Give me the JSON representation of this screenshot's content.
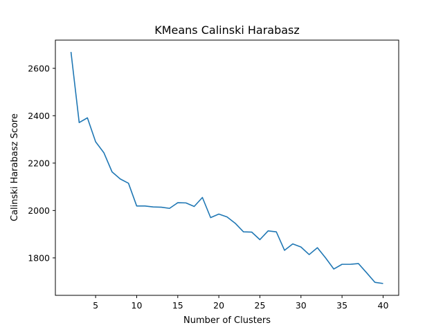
{
  "chart_data": {
    "type": "line",
    "title": "KMeans Calinski Harabasz",
    "xlabel": "Number of Clusters",
    "ylabel": "Calinski Harabasz Score",
    "xlim": [
      0.1,
      41.9
    ],
    "ylim": [
      1642,
      2719
    ],
    "xticks": [
      5,
      10,
      15,
      20,
      25,
      30,
      35,
      40
    ],
    "yticks": [
      1800,
      2000,
      2200,
      2400,
      2600
    ],
    "grid": false,
    "legend": "none",
    "line_color": "#1f77b4",
    "series": [
      {
        "x": [
          2,
          3,
          4,
          5,
          6,
          7,
          8,
          9,
          10,
          11,
          12,
          13,
          14,
          15,
          16,
          17,
          18,
          19,
          20,
          21,
          22,
          23,
          24,
          25,
          26,
          27,
          28,
          29,
          30,
          31,
          32,
          33,
          34,
          35,
          36,
          37,
          38,
          39,
          40
        ],
        "y": [
          2669,
          2371,
          2391,
          2290,
          2244,
          2163,
          2133,
          2115,
          2019,
          2019,
          2015,
          2014,
          2009,
          2033,
          2032,
          2017,
          2055,
          1970,
          1985,
          1973,
          1946,
          1910,
          1909,
          1877,
          1914,
          1910,
          1832,
          1859,
          1846,
          1814,
          1843,
          1800,
          1753,
          1773,
          1773,
          1776,
          1737,
          1697,
          1692
        ]
      }
    ]
  }
}
